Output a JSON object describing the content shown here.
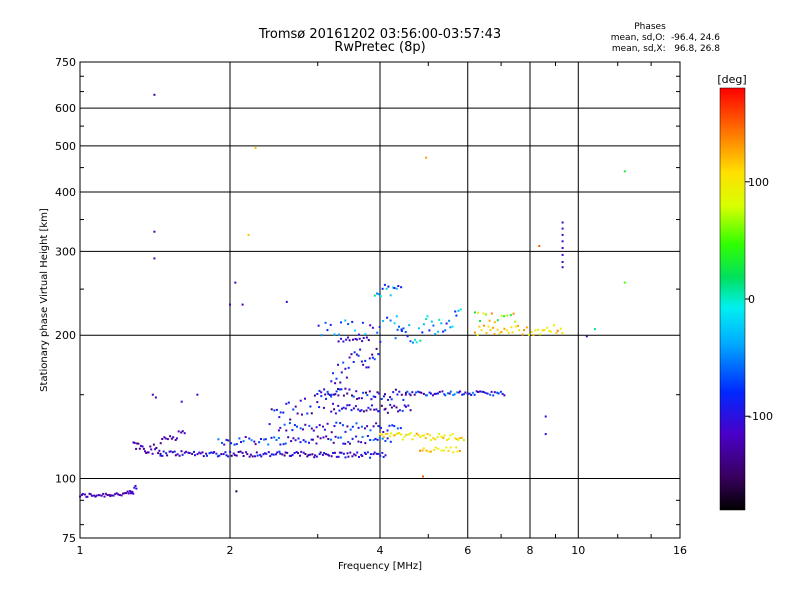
{
  "title_line1": "Tromsø 20161202 03:56:00-03:57:43",
  "title_line2": "RwPretec (8p)",
  "phase_stats": {
    "header": "Phases",
    "o_line": "mean, sd,O:  -96.4, 24.6",
    "x_line": "mean, sd,X:   96.8, 26.8"
  },
  "colorbar": {
    "unit": "deg",
    "ticks": [
      {
        "value": 100,
        "label": "100"
      },
      {
        "value": 0,
        "label": "0"
      },
      {
        "value": -100,
        "label": "-100"
      }
    ],
    "range": [
      -180,
      180
    ]
  },
  "chart_data": {
    "type": "scatter",
    "xlabel": "Frequency [MHz]",
    "ylabel": "Stationary phase Virtual Height [km]",
    "xscale": "log",
    "yscale": "log",
    "xlim": [
      1,
      16
    ],
    "ylim": [
      75,
      750
    ],
    "xticks": [
      {
        "value": 1,
        "label": "1"
      },
      {
        "value": 2,
        "label": "2"
      },
      {
        "value": 4,
        "label": "4"
      },
      {
        "value": 6,
        "label": "6"
      },
      {
        "value": 8,
        "label": "8"
      },
      {
        "value": 10,
        "label": "10"
      },
      {
        "value": 16,
        "label": "16"
      }
    ],
    "yticks": [
      {
        "value": 75,
        "label": "75"
      },
      {
        "value": 100,
        "label": "100"
      },
      {
        "value": 200,
        "label": "200"
      },
      {
        "value": 300,
        "label": "300"
      },
      {
        "value": 400,
        "label": "400"
      },
      {
        "value": 500,
        "label": "500"
      },
      {
        "value": 600,
        "label": "600"
      },
      {
        "value": 750,
        "label": "750"
      }
    ],
    "grid": true,
    "traces": [
      {
        "f_start": 1.0,
        "f_end": 1.28,
        "h_start": 92,
        "h_end": 93,
        "n": 36,
        "phase": -120,
        "phase_spread": 15,
        "h_jitter": 1.0
      },
      {
        "f_start": 1.26,
        "f_end": 1.3,
        "h_start": 93,
        "h_end": 96,
        "n": 6,
        "phase": -110,
        "phase_spread": 10,
        "h_jitter": 1.5
      },
      {
        "f_start": 1.28,
        "f_end": 1.45,
        "h_start": 118,
        "h_end": 114,
        "n": 22,
        "phase": -130,
        "phase_spread": 20,
        "h_jitter": 3.0
      },
      {
        "f_start": 1.45,
        "f_end": 1.62,
        "h_start": 121,
        "h_end": 124,
        "n": 14,
        "phase": -125,
        "phase_spread": 15,
        "h_jitter": 2.5
      },
      {
        "f_start": 1.45,
        "f_end": 4.1,
        "h_start": 113,
        "h_end": 112,
        "n": 130,
        "phase": -110,
        "phase_spread": 35,
        "h_jitter": 1.5
      },
      {
        "f_start": 1.9,
        "f_end": 4.2,
        "h_start": 120,
        "h_end": 121,
        "n": 70,
        "phase": -90,
        "phase_spread": 45,
        "h_jitter": 2.5
      },
      {
        "f_start": 2.5,
        "f_end": 4.4,
        "h_start": 128,
        "h_end": 128,
        "n": 45,
        "phase": -95,
        "phase_spread": 40,
        "h_jitter": 3.0
      },
      {
        "f_start": 3.2,
        "f_end": 4.6,
        "h_start": 140,
        "h_end": 140,
        "n": 40,
        "phase": -105,
        "phase_spread": 40,
        "h_jitter": 3.0
      },
      {
        "f_start": 3.0,
        "f_end": 4.5,
        "h_start": 151,
        "h_end": 150,
        "n": 45,
        "phase": -110,
        "phase_spread": 45,
        "h_jitter": 4.0
      },
      {
        "f_start": 4.5,
        "f_end": 7.1,
        "h_start": 151,
        "h_end": 151,
        "n": 55,
        "phase": -90,
        "phase_spread": 45,
        "h_jitter": 1.5
      },
      {
        "f_start": 4.0,
        "f_end": 5.9,
        "h_start": 123,
        "h_end": 122,
        "n": 45,
        "phase": 100,
        "phase_spread": 30,
        "h_jitter": 2.0
      },
      {
        "f_start": 4.8,
        "f_end": 5.8,
        "h_start": 115,
        "h_end": 115,
        "n": 18,
        "phase": 110,
        "phase_spread": 25,
        "h_jitter": 1.5
      },
      {
        "f_start": 3.3,
        "f_end": 3.8,
        "h_start": 196,
        "h_end": 196,
        "n": 14,
        "phase": -115,
        "phase_spread": 20,
        "h_jitter": 2.0
      },
      {
        "f_start": 3.0,
        "f_end": 4.4,
        "h_start": 205,
        "h_end": 212,
        "n": 25,
        "phase": -60,
        "phase_spread": 50,
        "h_jitter": 8.0
      },
      {
        "f_start": 4.3,
        "f_end": 5.8,
        "h_start": 200,
        "h_end": 215,
        "n": 35,
        "phase": -40,
        "phase_spread": 60,
        "h_jitter": 12.0
      },
      {
        "f_start": 6.2,
        "f_end": 9.3,
        "h_start": 205,
        "h_end": 205,
        "n": 40,
        "phase": 110,
        "phase_spread": 30,
        "h_jitter": 5.0
      },
      {
        "f_start": 6.2,
        "f_end": 7.5,
        "h_start": 218,
        "h_end": 218,
        "n": 15,
        "phase": 80,
        "phase_spread": 60,
        "h_jitter": 6.0
      },
      {
        "f_start": 3.9,
        "f_end": 4.4,
        "h_start": 240,
        "h_end": 260,
        "n": 14,
        "phase": -40,
        "phase_spread": 70,
        "h_jitter": 10.0
      },
      {
        "f_start": 3.2,
        "f_end": 4.0,
        "h_start": 165,
        "h_end": 185,
        "n": 30,
        "phase": -100,
        "phase_spread": 40,
        "h_jitter": 10.0
      },
      {
        "f_start": 2.4,
        "f_end": 3.3,
        "h_start": 135,
        "h_end": 148,
        "n": 30,
        "phase": -110,
        "phase_spread": 40,
        "h_jitter": 6.0
      }
    ],
    "points": [
      {
        "f": 1.41,
        "h": 640,
        "phase": -130
      },
      {
        "f": 1.41,
        "h": 330,
        "phase": -130
      },
      {
        "f": 1.41,
        "h": 290,
        "phase": -120
      },
      {
        "f": 2.25,
        "h": 495,
        "phase": 120
      },
      {
        "f": 2.18,
        "h": 325,
        "phase": 120
      },
      {
        "f": 4.95,
        "h": 472,
        "phase": 130
      },
      {
        "f": 12.4,
        "h": 442,
        "phase": 30
      },
      {
        "f": 12.4,
        "h": 258,
        "phase": 50
      },
      {
        "f": 8.35,
        "h": 308,
        "phase": 150
      },
      {
        "f": 9.3,
        "h": 345,
        "phase": -110
      },
      {
        "f": 9.3,
        "h": 335,
        "phase": -110
      },
      {
        "f": 9.3,
        "h": 325,
        "phase": -110
      },
      {
        "f": 9.3,
        "h": 315,
        "phase": -110
      },
      {
        "f": 9.3,
        "h": 305,
        "phase": -110
      },
      {
        "f": 9.3,
        "h": 295,
        "phase": -110
      },
      {
        "f": 9.3,
        "h": 285,
        "phase": -110
      },
      {
        "f": 9.3,
        "h": 278,
        "phase": -110
      },
      {
        "f": 2.05,
        "h": 258,
        "phase": -120
      },
      {
        "f": 2.0,
        "h": 232,
        "phase": -120
      },
      {
        "f": 2.12,
        "h": 232,
        "phase": -120
      },
      {
        "f": 2.6,
        "h": 235,
        "phase": -110
      },
      {
        "f": 2.06,
        "h": 94,
        "phase": -160
      },
      {
        "f": 4.88,
        "h": 101,
        "phase": 150
      },
      {
        "f": 10.4,
        "h": 199,
        "phase": -130
      },
      {
        "f": 8.6,
        "h": 135,
        "phase": -110
      },
      {
        "f": 8.6,
        "h": 124,
        "phase": -110
      },
      {
        "f": 1.4,
        "h": 150,
        "phase": -120
      },
      {
        "f": 1.42,
        "h": 148,
        "phase": -120
      },
      {
        "f": 10.8,
        "h": 206,
        "phase": 10
      },
      {
        "f": 1.6,
        "h": 145,
        "phase": -110
      },
      {
        "f": 1.72,
        "h": 150,
        "phase": -120
      }
    ]
  }
}
